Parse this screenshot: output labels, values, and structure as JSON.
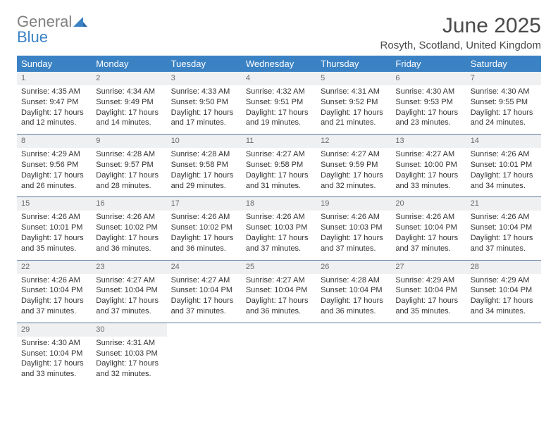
{
  "logo": {
    "word1": "General",
    "word2": "Blue"
  },
  "title": "June 2025",
  "location": "Rosyth, Scotland, United Kingdom",
  "colors": {
    "header_bg": "#3b82c4",
    "header_text": "#ffffff",
    "daynum_bg": "#eef0f2",
    "daynum_text": "#6a6a6a",
    "row_divider": "#5a7a9a",
    "body_text": "#333333",
    "title_text": "#4a4a4a",
    "logo_gray": "#808080",
    "logo_blue": "#3b82c4"
  },
  "weekdays": [
    "Sunday",
    "Monday",
    "Tuesday",
    "Wednesday",
    "Thursday",
    "Friday",
    "Saturday"
  ],
  "weeks": [
    [
      {
        "n": "1",
        "sr": "4:35 AM",
        "ss": "9:47 PM",
        "dl": "17 hours and 12 minutes."
      },
      {
        "n": "2",
        "sr": "4:34 AM",
        "ss": "9:49 PM",
        "dl": "17 hours and 14 minutes."
      },
      {
        "n": "3",
        "sr": "4:33 AM",
        "ss": "9:50 PM",
        "dl": "17 hours and 17 minutes."
      },
      {
        "n": "4",
        "sr": "4:32 AM",
        "ss": "9:51 PM",
        "dl": "17 hours and 19 minutes."
      },
      {
        "n": "5",
        "sr": "4:31 AM",
        "ss": "9:52 PM",
        "dl": "17 hours and 21 minutes."
      },
      {
        "n": "6",
        "sr": "4:30 AM",
        "ss": "9:53 PM",
        "dl": "17 hours and 23 minutes."
      },
      {
        "n": "7",
        "sr": "4:30 AM",
        "ss": "9:55 PM",
        "dl": "17 hours and 24 minutes."
      }
    ],
    [
      {
        "n": "8",
        "sr": "4:29 AM",
        "ss": "9:56 PM",
        "dl": "17 hours and 26 minutes."
      },
      {
        "n": "9",
        "sr": "4:28 AM",
        "ss": "9:57 PM",
        "dl": "17 hours and 28 minutes."
      },
      {
        "n": "10",
        "sr": "4:28 AM",
        "ss": "9:58 PM",
        "dl": "17 hours and 29 minutes."
      },
      {
        "n": "11",
        "sr": "4:27 AM",
        "ss": "9:58 PM",
        "dl": "17 hours and 31 minutes."
      },
      {
        "n": "12",
        "sr": "4:27 AM",
        "ss": "9:59 PM",
        "dl": "17 hours and 32 minutes."
      },
      {
        "n": "13",
        "sr": "4:27 AM",
        "ss": "10:00 PM",
        "dl": "17 hours and 33 minutes."
      },
      {
        "n": "14",
        "sr": "4:26 AM",
        "ss": "10:01 PM",
        "dl": "17 hours and 34 minutes."
      }
    ],
    [
      {
        "n": "15",
        "sr": "4:26 AM",
        "ss": "10:01 PM",
        "dl": "17 hours and 35 minutes."
      },
      {
        "n": "16",
        "sr": "4:26 AM",
        "ss": "10:02 PM",
        "dl": "17 hours and 36 minutes."
      },
      {
        "n": "17",
        "sr": "4:26 AM",
        "ss": "10:02 PM",
        "dl": "17 hours and 36 minutes."
      },
      {
        "n": "18",
        "sr": "4:26 AM",
        "ss": "10:03 PM",
        "dl": "17 hours and 37 minutes."
      },
      {
        "n": "19",
        "sr": "4:26 AM",
        "ss": "10:03 PM",
        "dl": "17 hours and 37 minutes."
      },
      {
        "n": "20",
        "sr": "4:26 AM",
        "ss": "10:04 PM",
        "dl": "17 hours and 37 minutes."
      },
      {
        "n": "21",
        "sr": "4:26 AM",
        "ss": "10:04 PM",
        "dl": "17 hours and 37 minutes."
      }
    ],
    [
      {
        "n": "22",
        "sr": "4:26 AM",
        "ss": "10:04 PM",
        "dl": "17 hours and 37 minutes."
      },
      {
        "n": "23",
        "sr": "4:27 AM",
        "ss": "10:04 PM",
        "dl": "17 hours and 37 minutes."
      },
      {
        "n": "24",
        "sr": "4:27 AM",
        "ss": "10:04 PM",
        "dl": "17 hours and 37 minutes."
      },
      {
        "n": "25",
        "sr": "4:27 AM",
        "ss": "10:04 PM",
        "dl": "17 hours and 36 minutes."
      },
      {
        "n": "26",
        "sr": "4:28 AM",
        "ss": "10:04 PM",
        "dl": "17 hours and 36 minutes."
      },
      {
        "n": "27",
        "sr": "4:29 AM",
        "ss": "10:04 PM",
        "dl": "17 hours and 35 minutes."
      },
      {
        "n": "28",
        "sr": "4:29 AM",
        "ss": "10:04 PM",
        "dl": "17 hours and 34 minutes."
      }
    ],
    [
      {
        "n": "29",
        "sr": "4:30 AM",
        "ss": "10:04 PM",
        "dl": "17 hours and 33 minutes."
      },
      {
        "n": "30",
        "sr": "4:31 AM",
        "ss": "10:03 PM",
        "dl": "17 hours and 32 minutes."
      },
      null,
      null,
      null,
      null,
      null
    ]
  ],
  "labels": {
    "sunrise": "Sunrise: ",
    "sunset": "Sunset: ",
    "daylight": "Daylight: "
  }
}
